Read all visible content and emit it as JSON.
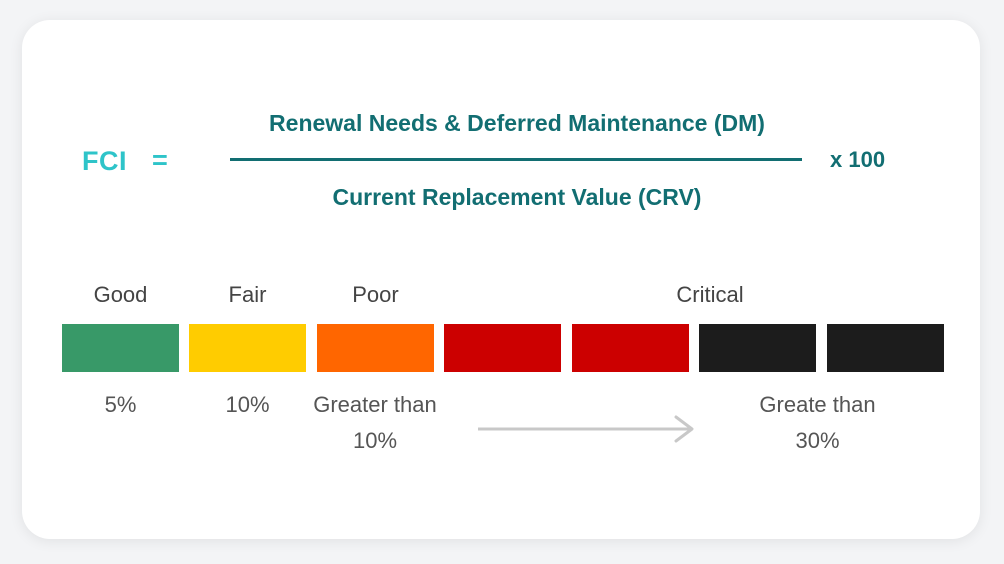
{
  "formula": {
    "lhs": "FCI",
    "equals": "=",
    "numerator": "Renewal Needs & Deferred Maintenance (DM)",
    "denominator": "Current Replacement Value (CRV)",
    "multiplier": "x 100"
  },
  "scale": {
    "labels": {
      "good": "Good",
      "fair": "Fair",
      "poor": "Poor",
      "critical": "Critical"
    },
    "segment_colors": [
      "#389968",
      "#ffcc00",
      "#ff6600",
      "#cc0000",
      "#cc0000",
      "#1c1c1c",
      "#1c1c1c"
    ],
    "thresholds": {
      "good": "5%",
      "fair": "10%",
      "poor_line1": "Greater than",
      "poor_line2": "10%",
      "critical_line1": "Greate than",
      "critical_line2": "30%"
    }
  },
  "colors": {
    "fci_accent": "#2ec4c9",
    "formula_text": "#126e72",
    "arrow": "#c8c8c8"
  }
}
